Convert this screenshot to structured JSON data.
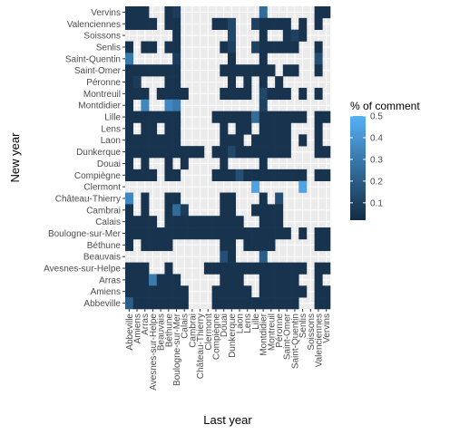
{
  "chart_data": {
    "type": "heatmap",
    "xlabel": "Last year",
    "ylabel": "New year",
    "legend": {
      "title": "% of comment",
      "ticks": [
        0.1,
        0.2,
        0.3,
        0.4,
        0.5
      ],
      "range": [
        0.02,
        0.5
      ],
      "low_color": "#132B43",
      "high_color": "#56B1F7",
      "position": "right"
    },
    "panel_background": "#EBEBEB",
    "x_categories": [
      "Abbeville",
      "Amiens",
      "Arras",
      "Avesnes-sur-Helpe",
      "Beauvais",
      "Béthune",
      "Boulogne-sur-Mer",
      "Calais",
      "Cambrai",
      "Château-Thierry",
      "Clermont",
      "Compiègne",
      "Douai",
      "Dunkerque",
      "Laon",
      "Lens",
      "Lille",
      "Montdidier",
      "Montreuil",
      "Péronne",
      "Saint-Omer",
      "Saint-Quentin",
      "Senlis",
      "Soissons",
      "Valenciennes",
      "Vervins"
    ],
    "y_categories": [
      "Abbeville",
      "Amiens",
      "Arras",
      "Avesnes-sur-Helpe",
      "Beauvais",
      "Béthune",
      "Boulogne-sur-Mer",
      "Calais",
      "Cambrai",
      "Château-Thierry",
      "Clermont",
      "Compiègne",
      "Douai",
      "Dunkerque",
      "Laon",
      "Lens",
      "Lille",
      "Montdidier",
      "Montreuil",
      "Péronne",
      "Saint-Omer",
      "Saint-Quentin",
      "Senlis",
      "Soissons",
      "Valenciennes",
      "Vervins"
    ],
    "cells": [
      {
        "y": "Vervins",
        "values": [
          0.05,
          0.05,
          0.05,
          null,
          null,
          0.05,
          0.08,
          null,
          null,
          null,
          null,
          null,
          null,
          null,
          null,
          null,
          null,
          0.25,
          null,
          null,
          null,
          null,
          null,
          null,
          0.05,
          0.05
        ]
      },
      {
        "y": "Valenciennes",
        "values": [
          0.05,
          0.05,
          0.05,
          0.05,
          null,
          0.05,
          0.05,
          null,
          null,
          null,
          null,
          0.05,
          0.05,
          0.12,
          null,
          null,
          0.1,
          0.05,
          0.05,
          0.05,
          0.05,
          null,
          0.05,
          null,
          0.05,
          null
        ]
      },
      {
        "y": "Soissons",
        "values": [
          null,
          null,
          null,
          null,
          null,
          null,
          0.05,
          null,
          null,
          null,
          null,
          null,
          null,
          0.12,
          null,
          null,
          null,
          0.05,
          null,
          null,
          0.05,
          0.1,
          0.05,
          null,
          null,
          null
        ]
      },
      {
        "y": "Senlis",
        "values": [
          0.05,
          null,
          0.05,
          0.05,
          null,
          0.05,
          0.05,
          null,
          null,
          null,
          null,
          null,
          0.05,
          0.1,
          null,
          null,
          0.1,
          0.05,
          0.05,
          0.05,
          0.05,
          0.05,
          null,
          null,
          0.05,
          null
        ]
      },
      {
        "y": "Saint-Quentin",
        "values": [
          0.3,
          null,
          null,
          null,
          null,
          null,
          0.08,
          null,
          null,
          null,
          null,
          null,
          null,
          0.05,
          null,
          null,
          null,
          0.05,
          null,
          null,
          null,
          null,
          null,
          null,
          0.15,
          null
        ]
      },
      {
        "y": "Saint-Omer",
        "values": [
          0.05,
          0.05,
          0.05,
          0.05,
          0.05,
          0.05,
          0.05,
          null,
          null,
          null,
          null,
          null,
          0.05,
          0.05,
          0.05,
          0.05,
          0.05,
          0.05,
          0.05,
          null,
          0.05,
          0.05,
          null,
          null,
          0.05,
          null
        ]
      },
      {
        "y": "Péronne",
        "values": [
          0.05,
          0.08,
          null,
          null,
          null,
          0.05,
          0.05,
          null,
          null,
          null,
          null,
          null,
          null,
          0.05,
          null,
          0.05,
          null,
          0.05,
          null,
          0.05,
          null,
          null,
          null,
          null,
          null,
          null
        ]
      },
      {
        "y": "Montreuil",
        "values": [
          0.05,
          0.05,
          0.05,
          null,
          0.05,
          0.05,
          0.05,
          0.05,
          null,
          null,
          null,
          null,
          0.05,
          0.05,
          0.05,
          0.05,
          null,
          0.12,
          0.05,
          0.05,
          0.05,
          null,
          0.05,
          null,
          0.05,
          null
        ]
      },
      {
        "y": "Montdidier",
        "values": [
          0.05,
          null,
          0.35,
          null,
          null,
          0.35,
          0.3,
          null,
          null,
          null,
          null,
          null,
          null,
          null,
          null,
          null,
          null,
          0.1,
          null,
          null,
          null,
          null,
          null,
          null,
          null,
          null
        ]
      },
      {
        "y": "Lille",
        "values": [
          0.05,
          0.05,
          0.05,
          0.05,
          0.05,
          0.05,
          0.05,
          null,
          null,
          null,
          null,
          0.05,
          0.05,
          0.05,
          0.05,
          0.05,
          0.25,
          0.05,
          0.05,
          0.05,
          0.05,
          0.05,
          0.05,
          null,
          0.05,
          0.05
        ]
      },
      {
        "y": "Lens",
        "values": [
          0.05,
          null,
          0.05,
          0.05,
          null,
          0.05,
          0.05,
          null,
          null,
          null,
          null,
          null,
          0.05,
          null,
          0.05,
          0.05,
          null,
          0.05,
          0.05,
          0.05,
          0.05,
          null,
          null,
          null,
          0.05,
          null
        ]
      },
      {
        "y": "Laon",
        "values": [
          0.05,
          0.05,
          0.05,
          0.05,
          0.05,
          0.05,
          0.05,
          null,
          null,
          null,
          null,
          null,
          0.05,
          0.05,
          0.05,
          null,
          0.05,
          0.05,
          0.05,
          0.05,
          0.05,
          null,
          0.05,
          null,
          0.05,
          null
        ]
      },
      {
        "y": "Dunkerque",
        "values": [
          0.05,
          0.05,
          0.05,
          0.05,
          0.05,
          0.05,
          0.05,
          0.05,
          0.05,
          0.05,
          null,
          0.05,
          0.05,
          0.12,
          0.05,
          0.05,
          0.05,
          0.05,
          0.05,
          0.05,
          0.05,
          null,
          null,
          null,
          0.05,
          0.05
        ]
      },
      {
        "y": "Douai",
        "values": [
          0.05,
          null,
          0.05,
          null,
          null,
          0.05,
          null,
          0.05,
          null,
          null,
          null,
          null,
          0.05,
          null,
          null,
          null,
          null,
          0.05,
          null,
          null,
          null,
          null,
          null,
          null,
          null,
          null
        ]
      },
      {
        "y": "Compiègne",
        "values": [
          0.05,
          0.05,
          0.05,
          0.05,
          null,
          0.05,
          0.05,
          null,
          null,
          null,
          null,
          0.05,
          0.05,
          0.05,
          0.15,
          0.05,
          0.05,
          0.05,
          0.05,
          0.05,
          0.05,
          0.05,
          0.05,
          null,
          0.05,
          0.05
        ]
      },
      {
        "y": "Clermont",
        "values": [
          null,
          null,
          null,
          null,
          null,
          null,
          null,
          null,
          null,
          null,
          null,
          null,
          null,
          null,
          null,
          null,
          0.45,
          null,
          null,
          null,
          null,
          null,
          0.45,
          null,
          null,
          null
        ]
      },
      {
        "y": "Château-Thierry",
        "values": [
          0.35,
          null,
          0.05,
          null,
          null,
          0.05,
          0.05,
          null,
          null,
          null,
          null,
          null,
          0.05,
          0.05,
          null,
          null,
          null,
          0.05,
          null,
          0.15,
          null,
          null,
          null,
          null,
          null,
          null
        ]
      },
      {
        "y": "Cambrai",
        "values": [
          0.05,
          null,
          0.05,
          null,
          null,
          0.05,
          0.25,
          0.08,
          null,
          null,
          null,
          null,
          0.05,
          0.05,
          null,
          null,
          0.05,
          0.05,
          0.05,
          0.05,
          null,
          null,
          null,
          null,
          null,
          null
        ]
      },
      {
        "y": "Calais",
        "values": [
          0.05,
          0.05,
          0.05,
          0.05,
          null,
          0.05,
          0.05,
          0.05,
          0.05,
          0.05,
          0.05,
          0.05,
          0.05,
          0.05,
          0.05,
          null,
          null,
          0.05,
          0.05,
          0.05,
          null,
          null,
          null,
          null,
          null,
          null
        ]
      },
      {
        "y": "Boulogne-sur-Mer",
        "values": [
          0.05,
          0.05,
          0.05,
          0.05,
          0.05,
          0.05,
          0.05,
          0.05,
          0.05,
          0.05,
          0.05,
          0.05,
          0.05,
          0.05,
          0.05,
          0.05,
          0.05,
          0.05,
          0.05,
          0.05,
          0.05,
          null,
          0.05,
          null,
          0.05,
          0.05
        ]
      },
      {
        "y": "Béthune",
        "values": [
          0.05,
          null,
          0.05,
          0.05,
          0.05,
          0.05,
          null,
          null,
          null,
          null,
          null,
          null,
          0.05,
          0.05,
          null,
          0.05,
          0.05,
          0.05,
          0.05,
          null,
          null,
          null,
          null,
          null,
          0.05,
          0.05
        ]
      },
      {
        "y": "Beauvais",
        "values": [
          null,
          null,
          null,
          null,
          null,
          null,
          null,
          null,
          null,
          null,
          null,
          null,
          0.15,
          0.05,
          null,
          null,
          null,
          0.2,
          null,
          null,
          null,
          null,
          null,
          null,
          null,
          null
        ]
      },
      {
        "y": "Avesnes-sur-Helpe",
        "values": [
          0.05,
          0.05,
          0.05,
          null,
          null,
          0.05,
          null,
          null,
          null,
          null,
          0.05,
          0.05,
          0.05,
          0.05,
          0.05,
          0.05,
          0.05,
          0.05,
          0.05,
          0.05,
          0.05,
          0.05,
          0.05,
          null,
          0.05,
          0.05
        ]
      },
      {
        "y": "Arras",
        "values": [
          0.05,
          0.05,
          0.05,
          0.3,
          0.05,
          0.05,
          0.05,
          null,
          null,
          null,
          null,
          null,
          0.05,
          0.05,
          0.05,
          null,
          null,
          0.05,
          0.05,
          0.05,
          0.05,
          0.05,
          null,
          null,
          0.05,
          null
        ]
      },
      {
        "y": "Amiens",
        "values": [
          0.05,
          0.05,
          0.05,
          0.05,
          0.05,
          0.05,
          0.05,
          0.05,
          null,
          null,
          null,
          0.05,
          0.05,
          0.05,
          0.05,
          0.05,
          null,
          0.05,
          0.05,
          0.05,
          0.05,
          0.05,
          0.05,
          null,
          0.05,
          0.05
        ]
      },
      {
        "y": "Abbeville",
        "values": [
          0.2,
          0.05,
          0.05,
          0.05,
          0.05,
          0.05,
          0.05,
          0.05,
          null,
          null,
          null,
          0.05,
          0.05,
          0.05,
          0.05,
          0.05,
          0.05,
          0.05,
          0.05,
          0.05,
          0.05,
          0.05,
          null,
          null,
          0.05,
          0.05
        ]
      }
    ]
  }
}
